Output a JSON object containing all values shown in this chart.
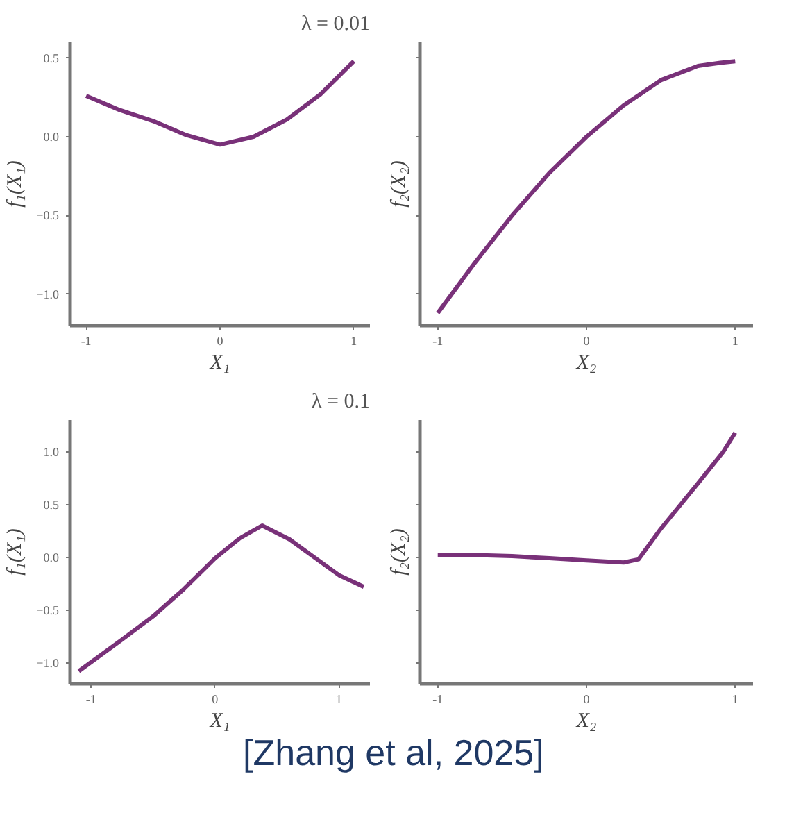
{
  "chart_data": [
    {
      "type": "line",
      "title": "λ = 0.01",
      "xlabel": "X₁",
      "ylabel": "f₁(X₁)",
      "line_style": "solid",
      "marker": "none",
      "x": [
        -1.0,
        -0.75,
        -0.5,
        -0.25,
        0.0,
        0.25,
        0.5,
        0.75,
        1.0
      ],
      "series": [
        {
          "color": "#6a1b6a",
          "values": [
            0.26,
            0.17,
            0.1,
            0.01,
            -0.05,
            0.0,
            0.11,
            0.27,
            0.48
          ]
        }
      ],
      "xlim": [
        -1.12,
        1.12
      ],
      "ylim": [
        -1.2,
        0.6
      ],
      "xticks": [
        -1,
        0,
        1
      ],
      "yticks": [
        {
          "value": -1.0,
          "label": "−1.0"
        },
        {
          "value": -0.5,
          "label": "−0.5"
        },
        {
          "value": 0.0,
          "label": "0.0"
        },
        {
          "value": 0.5,
          "label": "0.5"
        }
      ]
    },
    {
      "type": "line",
      "xlabel": "X₂",
      "ylabel": "f₂(X₂)",
      "line_style": "solid",
      "marker": "none",
      "tick_labels": "x",
      "x": [
        -1.0,
        -0.75,
        -0.5,
        -0.25,
        0.0,
        0.25,
        0.5,
        0.75,
        0.9,
        1.0
      ],
      "series": [
        {
          "color": "#6a1b6a",
          "values": [
            -1.12,
            -0.8,
            -0.5,
            -0.23,
            0.0,
            0.2,
            0.36,
            0.45,
            0.47,
            0.48
          ]
        }
      ],
      "xlim": [
        -1.12,
        1.12
      ],
      "ylim": [
        -1.2,
        0.6
      ],
      "xticks": [
        -1,
        0,
        1
      ],
      "yticks": [
        -1.0,
        -0.5,
        0.0,
        0.5
      ]
    },
    {
      "type": "line",
      "title": "λ = 0.1",
      "xlabel": "X₁",
      "ylabel": "f₁(X₁)",
      "line_style": "solid",
      "marker": "none",
      "x": [
        -1.1,
        -0.75,
        -0.5,
        -0.25,
        0.0,
        0.2,
        0.38,
        0.6,
        0.8,
        1.0,
        1.2
      ],
      "series": [
        {
          "color": "#6a1b6a",
          "values": [
            -1.08,
            -0.78,
            -0.56,
            -0.3,
            -0.01,
            0.18,
            0.3,
            0.17,
            0.0,
            -0.17,
            -0.28
          ]
        }
      ],
      "xlim": [
        -1.17,
        1.25
      ],
      "ylim": [
        -1.2,
        1.3
      ],
      "xticks": [
        -1,
        0,
        1
      ],
      "yticks": [
        {
          "value": -1.0,
          "label": "−1.0"
        },
        {
          "value": -0.5,
          "label": "−0.5"
        },
        {
          "value": 0.0,
          "label": "0.0"
        },
        {
          "value": 0.5,
          "label": "0.5"
        },
        {
          "value": 1.0,
          "label": "1.0"
        }
      ]
    },
    {
      "type": "line",
      "xlabel": "X₂",
      "ylabel": "f₂(X₂)",
      "line_style": "solid",
      "marker": "none",
      "tick_labels": "x",
      "x": [
        -1.0,
        -0.75,
        -0.5,
        -0.25,
        0.0,
        0.25,
        0.35,
        0.5,
        0.75,
        0.92,
        1.0
      ],
      "series": [
        {
          "color": "#6a1b6a",
          "values": [
            0.02,
            0.02,
            0.01,
            -0.01,
            -0.03,
            -0.05,
            -0.02,
            0.27,
            0.7,
            1.0,
            1.18
          ]
        }
      ],
      "xlim": [
        -1.12,
        1.12
      ],
      "ylim": [
        -1.2,
        1.3
      ],
      "xticks": [
        -1,
        0,
        1
      ],
      "yticks": [
        -1.0,
        -0.5,
        0.0,
        0.5,
        1.0
      ],
      "annotations": [
        "[Zhang et al, 2025]"
      ]
    }
  ]
}
